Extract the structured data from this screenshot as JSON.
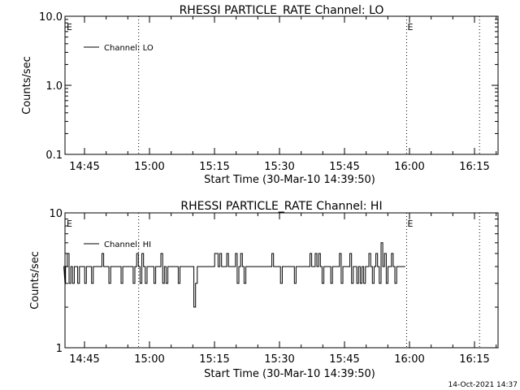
{
  "chart_data": [
    {
      "type": "line",
      "title": "RHESSI PARTICLE_RATE Channel: LO",
      "ylabel": "Counts/sec",
      "xlabel": "Start Time (30-Mar-10 14:39:50)",
      "y_scale": "log",
      "ylim": [
        0.1,
        10.0
      ],
      "y_ticks": [
        "0.1",
        "1.0",
        "10.0"
      ],
      "xlim_minutes_after_start": [
        0,
        27.5
      ],
      "x_ticks": [
        "14:45",
        "15:00",
        "15:15",
        "15:30",
        "15:45",
        "16:00",
        "16:15"
      ],
      "legend": "top-left",
      "series": [
        {
          "name": "Channel: LO",
          "x": [],
          "values": []
        }
      ],
      "vlines": [
        {
          "time": "14:57:30",
          "label": ""
        },
        {
          "time": "15:59:20",
          "label": "E"
        },
        {
          "time": "16:16:10",
          "label": ""
        }
      ],
      "corner_label": "E"
    },
    {
      "type": "line",
      "title": "RHESSI PARTICLE_RATE Channel: HI",
      "ylabel": "Counts/sec",
      "xlabel": "Start Time (30-Mar-10 14:39:50)",
      "y_scale": "log",
      "ylim": [
        1,
        10
      ],
      "y_ticks": [
        "1",
        "10"
      ],
      "x_ticks": [
        "14:45",
        "15:00",
        "15:15",
        "15:30",
        "15:45",
        "16:00",
        "16:15"
      ],
      "legend": "top-left",
      "series": [
        {
          "name": "Channel: HI",
          "x_start": "14:39:50",
          "x_step_seconds": 24,
          "values": [
            4,
            3,
            4,
            5,
            3,
            4,
            3,
            4,
            4,
            3,
            4,
            4,
            4,
            3,
            4,
            4,
            4,
            3,
            4,
            4,
            4,
            4,
            4,
            5,
            4,
            4,
            4,
            3,
            4,
            4,
            4,
            4,
            4,
            4,
            3,
            4,
            4,
            4,
            4,
            4,
            4,
            3,
            4,
            5,
            4,
            3,
            5,
            4,
            3,
            4,
            4,
            4,
            4,
            3,
            4,
            4,
            4,
            5,
            3,
            4,
            3,
            4,
            4,
            4,
            4,
            4,
            4,
            3,
            4,
            4,
            4,
            4,
            4,
            4,
            4,
            4,
            2,
            3,
            4,
            4,
            4,
            4,
            4,
            4,
            4,
            4,
            4,
            4,
            5,
            5,
            4,
            5,
            4,
            4,
            4,
            5,
            4,
            4,
            4,
            4,
            5,
            3,
            4,
            5,
            4,
            3,
            4,
            4,
            4,
            4,
            4,
            4,
            4,
            4,
            4,
            4,
            4,
            4,
            4,
            4,
            4,
            5,
            4,
            4,
            4,
            4,
            3,
            4,
            4,
            4,
            4,
            4,
            4,
            4,
            3,
            4,
            4,
            4,
            4,
            4,
            4,
            4,
            4,
            5,
            4,
            4,
            5,
            4,
            5,
            4,
            3,
            4,
            4,
            4,
            4,
            3,
            4,
            4,
            4,
            4,
            5,
            3,
            4,
            4,
            4,
            4,
            5,
            3,
            4,
            4,
            3,
            4,
            3,
            4,
            3,
            4,
            4,
            5,
            4,
            3,
            4,
            5,
            4,
            3,
            6,
            4,
            5,
            3,
            4,
            4,
            5,
            4,
            3,
            4,
            4,
            4,
            4,
            4
          ]
        }
      ],
      "vlines": [
        {
          "time": "14:57:30",
          "label": ""
        },
        {
          "time": "15:59:20",
          "label": "E"
        },
        {
          "time": "16:16:10",
          "label": ""
        }
      ],
      "corner_label": "E"
    }
  ],
  "footer": {
    "timestamp": "14-Oct-2021 14:37"
  }
}
